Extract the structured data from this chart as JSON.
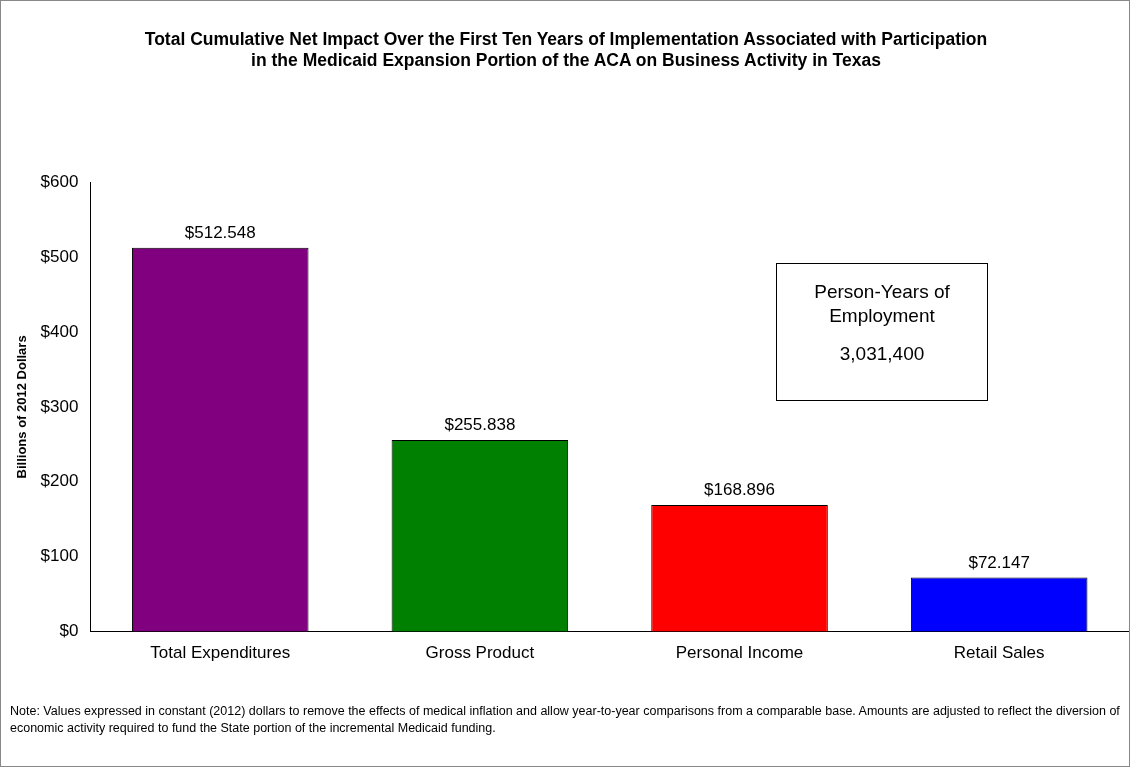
{
  "chart_data": {
    "type": "bar",
    "title": "Total Cumulative Net Impact Over the First Ten Years of Implementation Associated with Participation in the Medicaid Expansion Portion of the ACA on Business Activity in Texas",
    "ylabel": "Billions of 2012 Dollars",
    "categories": [
      "Total Expenditures",
      "Gross Product",
      "Personal Income",
      "Retail Sales"
    ],
    "values": [
      512.548,
      255.838,
      168.896,
      72.147
    ],
    "colors": [
      "#800080",
      "#008000",
      "#ff0000",
      "#0000ff"
    ],
    "value_labels": [
      "$512.548",
      "$255.838",
      "$168.896",
      "$72.147"
    ],
    "ylim": [
      0,
      600
    ],
    "yticks": [
      {
        "value": 0,
        "label": "$0"
      },
      {
        "value": 100,
        "label": "$100"
      },
      {
        "value": 200,
        "label": "$200"
      },
      {
        "value": 300,
        "label": "$300"
      },
      {
        "value": 400,
        "label": "$400"
      },
      {
        "value": 500,
        "label": "$500"
      },
      {
        "value": 600,
        "label": "$600"
      }
    ],
    "grid": false,
    "legend": false,
    "annotations": [
      "Person-Years of Employment",
      "3,031,400",
      "Note: Values expressed in constant (2012) dollars to remove the effects of medical inflation and allow year-to-year comparisons from a comparable base. Amounts are adjusted to reflect the diversion of economic activity required to fund the State portion of the incremental Medicaid funding."
    ]
  }
}
